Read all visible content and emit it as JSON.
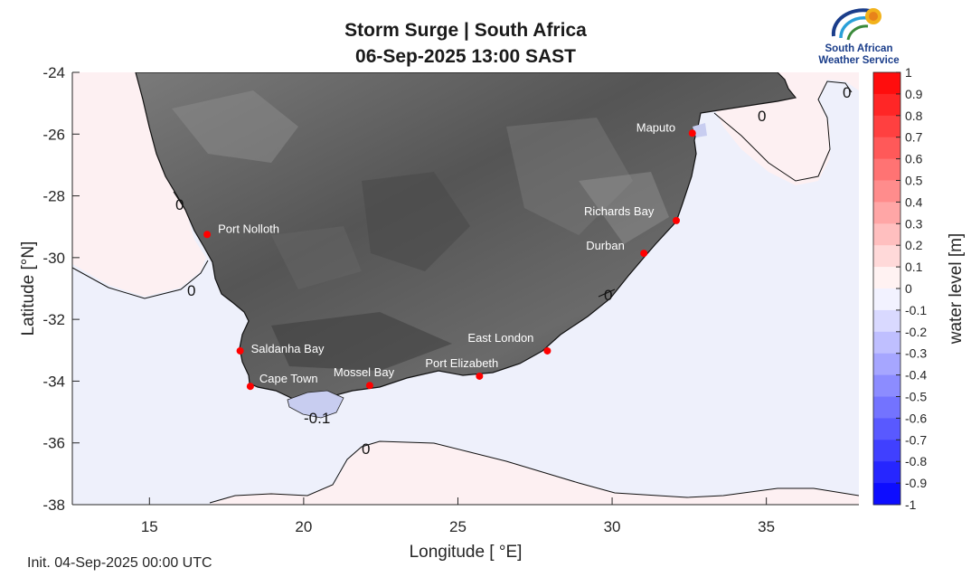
{
  "title_line1": "Storm Surge | South Africa",
  "title_line2": "06-Sep-2025  13:00 SAST",
  "init_text": "Init. 04-Sep-2025 00:00 UTC",
  "logo": {
    "line1": "South African",
    "line2": "Weather Service"
  },
  "x_axis": {
    "label": "Longitude [ °E]",
    "ticks": [
      15,
      20,
      25,
      30,
      35
    ],
    "range": [
      12.5,
      38
    ]
  },
  "y_axis": {
    "label": "Latitude [°N]",
    "ticks": [
      -24,
      -26,
      -28,
      -30,
      -32,
      -34,
      -36,
      -38
    ],
    "range": [
      -38,
      -24
    ]
  },
  "colorbar": {
    "label": "water level [m]",
    "ticks": [
      "1",
      "0.9",
      "0.8",
      "0.7",
      "0.6",
      "0.5",
      "0.4",
      "0.3",
      "0.2",
      "0.1",
      "0",
      "-0.1",
      "-0.2",
      "-0.3",
      "-0.4",
      "-0.5",
      "-0.6",
      "-0.7",
      "-0.8",
      "-0.9",
      "-1"
    ],
    "range": [
      -1,
      1
    ],
    "positive_color": "#ff0000",
    "negative_color": "#0000ff",
    "zero_color": "#ffffff"
  },
  "stations": [
    {
      "name": "Maputo",
      "lon": 32.6,
      "lat": -25.97
    },
    {
      "name": "Richards Bay",
      "lon": 32.08,
      "lat": -28.8
    },
    {
      "name": "Durban",
      "lon": 31.03,
      "lat": -29.86
    },
    {
      "name": "Port Nolloth",
      "lon": 16.87,
      "lat": -29.25
    },
    {
      "name": "Saldanha Bay",
      "lon": 17.94,
      "lat": -33.02
    },
    {
      "name": "Cape Town",
      "lon": 18.27,
      "lat": -34.17
    },
    {
      "name": "Mossel Bay",
      "lon": 22.14,
      "lat": -34.14
    },
    {
      "name": "Port Elizabeth",
      "lon": 25.7,
      "lat": -33.84
    },
    {
      "name": "East London",
      "lon": 27.9,
      "lat": -33.02
    }
  ],
  "contour_labels": [
    "0",
    "0",
    "0",
    "0",
    "-0.1",
    "0",
    "0"
  ],
  "colors": {
    "station_dot": "#ff0000",
    "station_label": "#ffffff",
    "land": "#5a5a5a",
    "positive_sea": "#fdf0f2",
    "negative_sea": "#eef0fb"
  }
}
